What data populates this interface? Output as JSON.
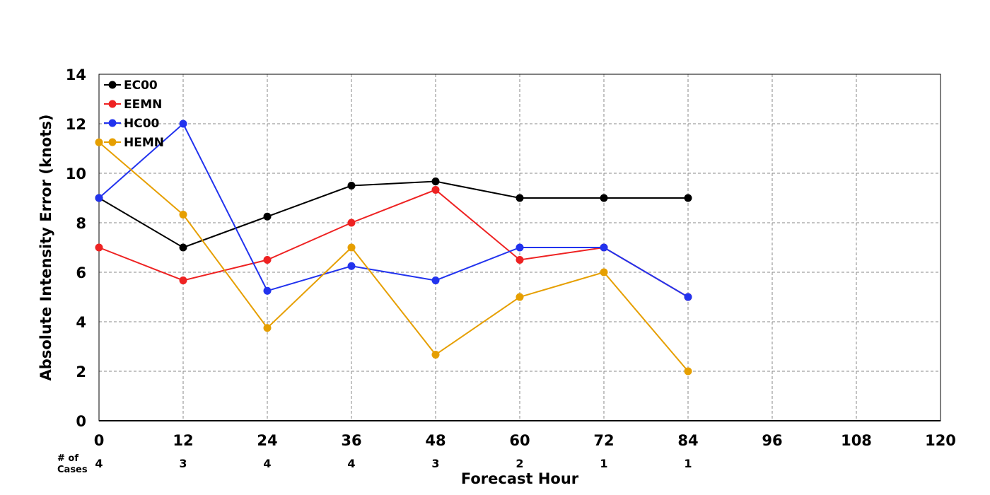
{
  "chart_data": {
    "type": "line",
    "xlabel": "Forecast Hour",
    "ylabel": "Absolute Intensity Error (knots)",
    "xlim": [
      0,
      120
    ],
    "ylim": [
      0,
      14
    ],
    "xticks": [
      "0",
      "12",
      "24",
      "36",
      "48",
      "60",
      "72",
      "84",
      "96",
      "108",
      "120"
    ],
    "yticks": [
      "0",
      "2",
      "4",
      "6",
      "8",
      "10",
      "12",
      "14"
    ],
    "grid": true,
    "legend_position": "top-left",
    "cases_label_line1": "# of",
    "cases_label_line2": "Cases",
    "cases": [
      {
        "x": 0,
        "label": "4"
      },
      {
        "x": 12,
        "label": "3"
      },
      {
        "x": 24,
        "label": "4"
      },
      {
        "x": 36,
        "label": "4"
      },
      {
        "x": 48,
        "label": "3"
      },
      {
        "x": 60,
        "label": "2"
      },
      {
        "x": 72,
        "label": "1"
      },
      {
        "x": 84,
        "label": "1"
      }
    ],
    "x": [
      0,
      12,
      24,
      36,
      48,
      60,
      72,
      84
    ],
    "series": [
      {
        "name": "EC00",
        "color": "#000000",
        "values": [
          9.0,
          7.0,
          8.25,
          9.5,
          9.67,
          9.0,
          9.0,
          9.0
        ]
      },
      {
        "name": "EEMN",
        "color": "#ee2222",
        "values": [
          7.0,
          5.67,
          6.5,
          8.0,
          9.33,
          6.5,
          7.0,
          5.0
        ]
      },
      {
        "name": "HC00",
        "color": "#2233ee",
        "values": [
          9.0,
          12.0,
          5.25,
          6.25,
          5.67,
          7.0,
          7.0,
          5.0
        ]
      },
      {
        "name": "HEMN",
        "color": "#e69f00",
        "values": [
          11.25,
          8.33,
          3.75,
          7.0,
          2.67,
          5.0,
          6.0,
          2.0
        ]
      }
    ]
  }
}
